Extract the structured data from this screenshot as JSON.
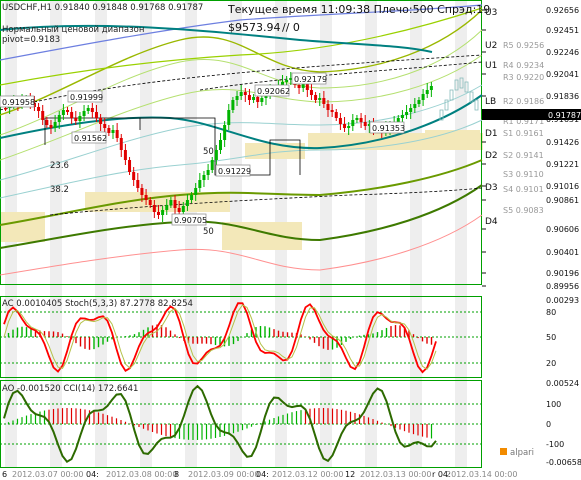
{
  "header": {
    "symbol_line": "USDCHF,H1  0.91840 0.91848 0.91768 0.91787",
    "range_label": "Нормальный ценовой диапазон",
    "pivot_label": "pivot=0.9183",
    "server_time": "Текущее время 11:09:38 Плечо:500 Спрэд:19",
    "balance": "$9573.94",
    "balance_note": "// 0"
  },
  "main_price_axis": [
    "0.92656",
    "0.92451",
    "0.92246",
    "0.92041",
    "0.91836",
    "0.91787",
    "0.91631",
    "0.91426",
    "0.91221",
    "0.91016",
    "0.90861",
    "0.90606",
    "0.90401",
    "0.90196",
    "0.89956"
  ],
  "current_price": "0.91787",
  "levels": {
    "bands": [
      "U3",
      "U2",
      "U1",
      "LB",
      "D1",
      "D2",
      "D3",
      "D4"
    ],
    "resistances": [
      "R5 0.9256",
      "R4 0.9234",
      "R3 0.9220",
      "R2 0.9186",
      "R1 0.9171"
    ],
    "supports": [
      "S1 0.9161",
      "S2 0.9141",
      "S3 0.9110",
      "S4 0.9101",
      "S5 0.9083"
    ]
  },
  "price_tags": [
    "0.91958",
    "0.91999",
    "0.91562",
    "0.91229",
    "0.90705",
    "0.92062",
    "0.92179",
    "0.91353"
  ],
  "fib_labels": [
    "23.6",
    "38.2",
    "50",
    "50"
  ],
  "sub1": {
    "title": "AC 0.0010405  Stoch(5,3,3) 87.2778 82.8254",
    "axis": [
      "0.00293",
      "80",
      "50",
      "20"
    ]
  },
  "sub2": {
    "title": "AO -0.001520  CCI(14) 172.6641",
    "axis": [
      "0.00524",
      "100",
      "0",
      "-100",
      "-0.00658"
    ]
  },
  "date_axis": [
    "6",
    "2012.03.07 00:00",
    "04:",
    "2012.03.08 00:00",
    "8",
    "2012.03.09 00:00",
    "04:",
    "2012.03.12 00:00",
    "12",
    "2012.03.13 00:00",
    "r 04:",
    "2012.03.14 00:00"
  ],
  "brand": "alpari",
  "colors": {
    "green": "#00b300",
    "red": "#ff0000",
    "olive": "#3a7a00",
    "teal": "#008080",
    "blue": "#1f3fd0",
    "zone": "#f2e7b8"
  }
}
